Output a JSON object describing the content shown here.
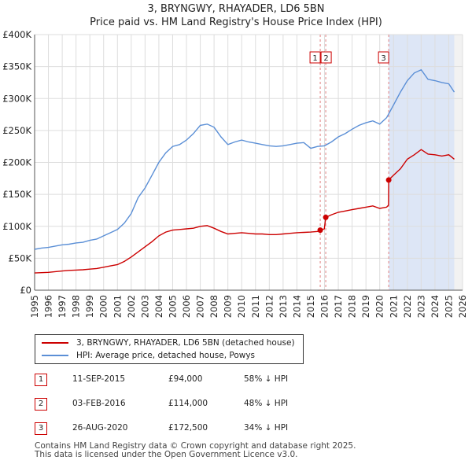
{
  "title_line1": "3, BRYNGWY, RHAYADER, LD6 5BN",
  "title_line2": "Price paid vs. HM Land Registry's House Price Index (HPI)",
  "colors": {
    "property": "#cc0000",
    "hpi": "#5b8fd6",
    "shade": "#dde6f6",
    "grid": "#dddddd",
    "vline": "#e08080"
  },
  "legend": {
    "property": "3, BRYNGWY, RHAYADER, LD6 5BN (detached house)",
    "hpi": "HPI: Average price, detached house, Powys"
  },
  "sales": [
    {
      "n": "1",
      "date": "11-SEP-2015",
      "price": "£94,000",
      "hpi": "58% ↓ HPI"
    },
    {
      "n": "2",
      "date": "03-FEB-2016",
      "price": "£114,000",
      "hpi": "48% ↓ HPI"
    },
    {
      "n": "3",
      "date": "26-AUG-2020",
      "price": "£172,500",
      "hpi": "34% ↓ HPI"
    }
  ],
  "footer": {
    "line1": "Contains HM Land Registry data © Crown copyright and database right 2025.",
    "line2": "This data is licensed under the Open Government Licence v3.0."
  },
  "chart_data": {
    "type": "line",
    "title": "3, BRYNGWY, RHAYADER, LD6 5BN Price paid vs. HM Land Registry's House Price Index (HPI)",
    "xlim": [
      1995,
      2026
    ],
    "ylim": [
      0,
      400000
    ],
    "yticks": [
      0,
      50000,
      100000,
      150000,
      200000,
      250000,
      300000,
      350000,
      400000
    ],
    "ytick_labels": [
      "£0",
      "£50K",
      "£100K",
      "£150K",
      "£200K",
      "£250K",
      "£300K",
      "£350K",
      "£400K"
    ],
    "xticks": [
      1995,
      1996,
      1997,
      1998,
      1999,
      2000,
      2001,
      2002,
      2003,
      2004,
      2005,
      2006,
      2007,
      2008,
      2009,
      2010,
      2011,
      2012,
      2013,
      2014,
      2015,
      2016,
      2017,
      2018,
      2019,
      2020,
      2021,
      2022,
      2023,
      2024,
      2025,
      2026
    ],
    "shaded_region": [
      2020.65,
      2025.4
    ],
    "series": [
      {
        "name": "HPI: Average price, detached house, Powys",
        "x": [
          1995,
          1995.5,
          1996,
          1996.5,
          1997,
          1997.5,
          1998,
          1998.5,
          1999,
          1999.5,
          2000,
          2000.5,
          2001,
          2001.5,
          2002,
          2002.5,
          2003,
          2003.5,
          2004,
          2004.5,
          2005,
          2005.5,
          2006,
          2006.5,
          2007,
          2007.5,
          2008,
          2008.5,
          2009,
          2009.5,
          2010,
          2010.5,
          2011,
          2011.5,
          2012,
          2012.5,
          2013,
          2013.5,
          2014,
          2014.5,
          2015,
          2015.5,
          2016,
          2016.5,
          2017,
          2017.5,
          2018,
          2018.5,
          2019,
          2019.5,
          2020,
          2020.5,
          2021,
          2021.5,
          2022,
          2022.5,
          2023,
          2023.5,
          2024,
          2024.5,
          2025,
          2025.4
        ],
        "values": [
          64000,
          66000,
          67000,
          69000,
          71000,
          72000,
          74000,
          75000,
          78000,
          80000,
          85000,
          90000,
          95000,
          105000,
          120000,
          145000,
          160000,
          180000,
          200000,
          215000,
          225000,
          228000,
          235000,
          245000,
          258000,
          260000,
          255000,
          240000,
          228000,
          232000,
          235000,
          232000,
          230000,
          228000,
          226000,
          225000,
          226000,
          228000,
          230000,
          231000,
          222000,
          225000,
          226000,
          232000,
          240000,
          245000,
          252000,
          258000,
          262000,
          265000,
          260000,
          270000,
          290000,
          310000,
          328000,
          340000,
          345000,
          330000,
          328000,
          325000,
          323000,
          310000
        ]
      },
      {
        "name": "3, BRYNGWY, RHAYADER, LD6 5BN (detached house)",
        "x": [
          1995,
          1995.5,
          1996,
          1996.5,
          1997,
          1997.5,
          1998,
          1998.5,
          1999,
          1999.5,
          2000,
          2000.5,
          2001,
          2001.5,
          2002,
          2002.5,
          2003,
          2003.5,
          2004,
          2004.5,
          2005,
          2005.5,
          2006,
          2006.5,
          2007,
          2007.5,
          2008,
          2008.5,
          2009,
          2009.5,
          2010,
          2010.5,
          2011,
          2011.5,
          2012,
          2012.5,
          2013,
          2013.5,
          2014,
          2014.5,
          2015,
          2015.5,
          2015.69,
          2015.99,
          2016.09,
          2016.5,
          2017,
          2017.5,
          2018,
          2018.5,
          2019,
          2019.5,
          2020,
          2020.5,
          2020.64,
          2020.65,
          2021,
          2021.5,
          2022,
          2022.5,
          2023,
          2023.5,
          2024,
          2024.5,
          2025,
          2025.4
        ],
        "values": [
          27000,
          27500,
          28000,
          29000,
          30000,
          31000,
          31500,
          32000,
          33000,
          34000,
          36000,
          38000,
          40000,
          45000,
          52000,
          60000,
          68000,
          76000,
          85000,
          91000,
          94000,
          95000,
          96000,
          97000,
          100000,
          101000,
          97000,
          92000,
          88000,
          89000,
          90000,
          89000,
          88000,
          88000,
          87000,
          87000,
          88000,
          89000,
          90000,
          90500,
          91000,
          92000,
          94000,
          96000,
          114000,
          118000,
          122000,
          124000,
          126000,
          128000,
          130000,
          132000,
          128000,
          130000,
          133000,
          172500,
          180000,
          190000,
          205000,
          212000,
          220000,
          213000,
          212000,
          210000,
          212000,
          205000
        ]
      }
    ],
    "sale_markers": [
      {
        "n": "1",
        "x": 2015.69,
        "y": 94000
      },
      {
        "n": "2",
        "x": 2016.09,
        "y": 114000
      },
      {
        "n": "3",
        "x": 2020.65,
        "y": 172500
      }
    ]
  }
}
